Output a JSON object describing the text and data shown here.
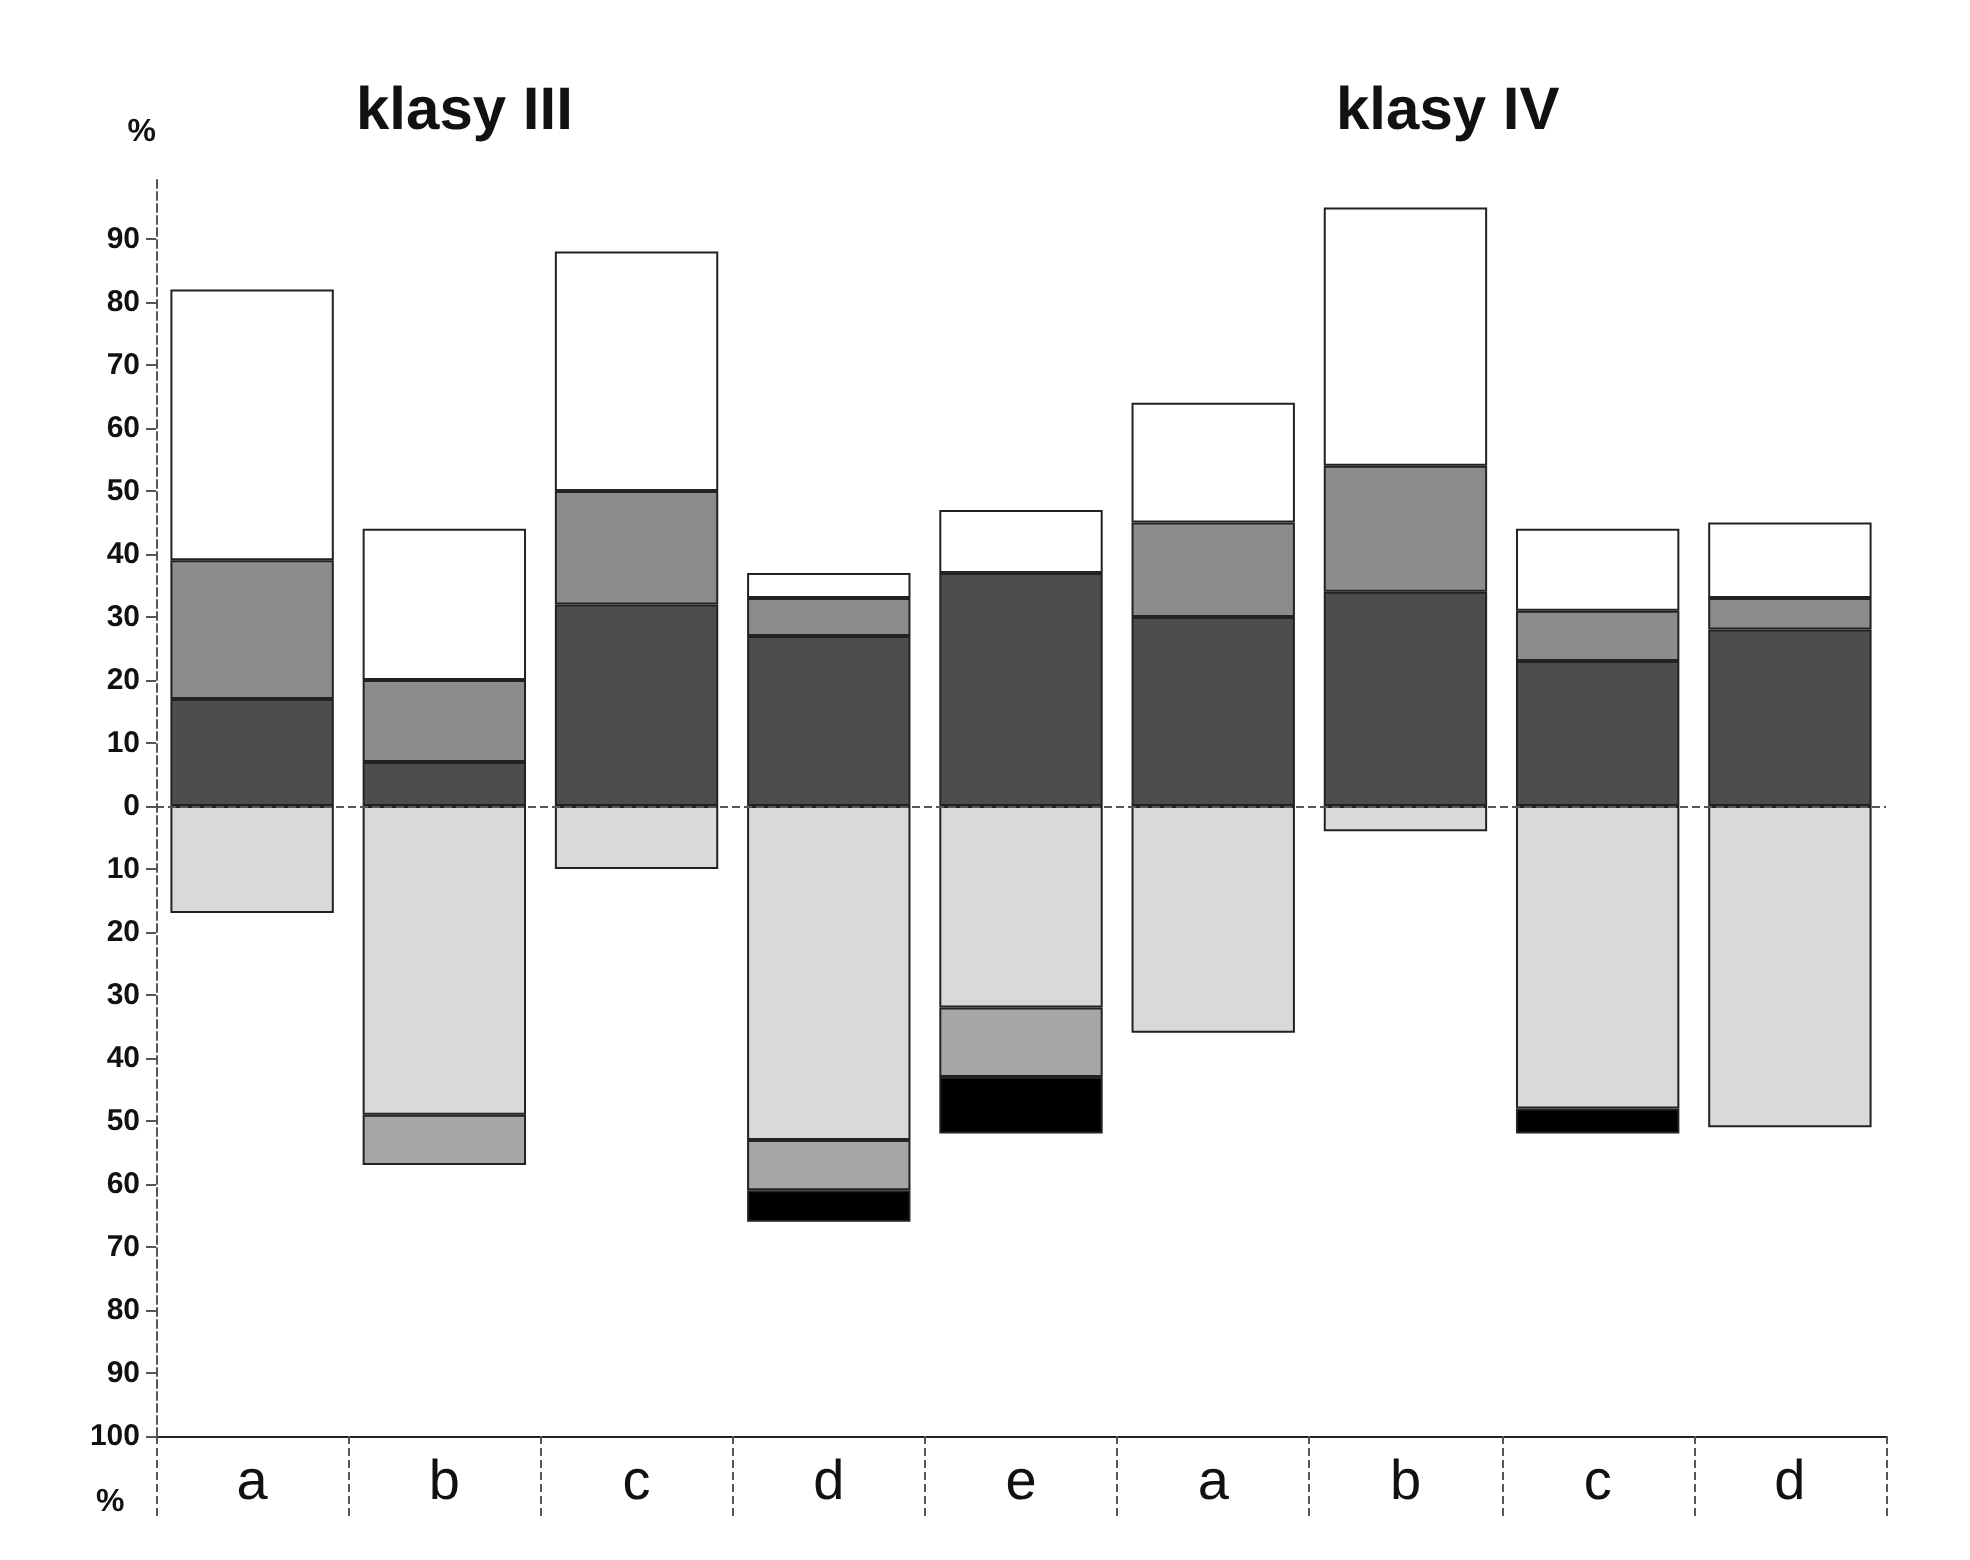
{
  "chart_data": {
    "type": "bar",
    "stacked": true,
    "ylabel": "%",
    "annotations": [
      "klasy III",
      "klasy IV",
      "%"
    ],
    "categories": [
      "a",
      "b",
      "c",
      "d",
      "e",
      "a",
      "b",
      "c",
      "d"
    ],
    "series": [
      {
        "color": "#4d4d4d",
        "values": [
          17,
          7,
          32,
          27,
          37,
          30,
          34,
          23,
          28
        ]
      },
      {
        "color": "#8c8c8c",
        "values": [
          22,
          13,
          18,
          6,
          null,
          15,
          20,
          8,
          5
        ]
      },
      {
        "color": "#ffffff",
        "values": [
          43,
          24,
          38,
          4,
          10,
          19,
          41,
          13,
          12
        ]
      },
      {
        "color": "#d9d9d9",
        "values": [
          -17,
          -49,
          -10,
          -53,
          -32,
          -36,
          -4,
          -48,
          -51
        ]
      },
      {
        "color": "#a6a6a6",
        "values": [
          null,
          -8,
          null,
          -8,
          -11,
          null,
          null,
          null,
          null
        ]
      },
      {
        "color": "#000000",
        "values": [
          null,
          null,
          null,
          -5,
          -9,
          null,
          null,
          -4,
          null
        ]
      }
    ],
    "ylim": [
      -100,
      100
    ],
    "yticks": [
      {
        "value": -100,
        "label": "100"
      },
      {
        "value": -90,
        "label": "90"
      },
      {
        "value": -80,
        "label": "80"
      },
      {
        "value": -70,
        "label": "70"
      },
      {
        "value": -60,
        "label": "60"
      },
      {
        "value": -50,
        "label": "50"
      },
      {
        "value": -40,
        "label": "40"
      },
      {
        "value": -30,
        "label": "30"
      },
      {
        "value": -20,
        "label": "20"
      },
      {
        "value": -10,
        "label": "10"
      },
      0,
      10,
      20,
      30,
      40,
      50,
      60,
      70,
      80,
      90
    ],
    "ref_lines": [
      {
        "axis": "y",
        "value": 0,
        "line_style": "dashed",
        "color": "#555555"
      }
    ],
    "grid": false
  }
}
